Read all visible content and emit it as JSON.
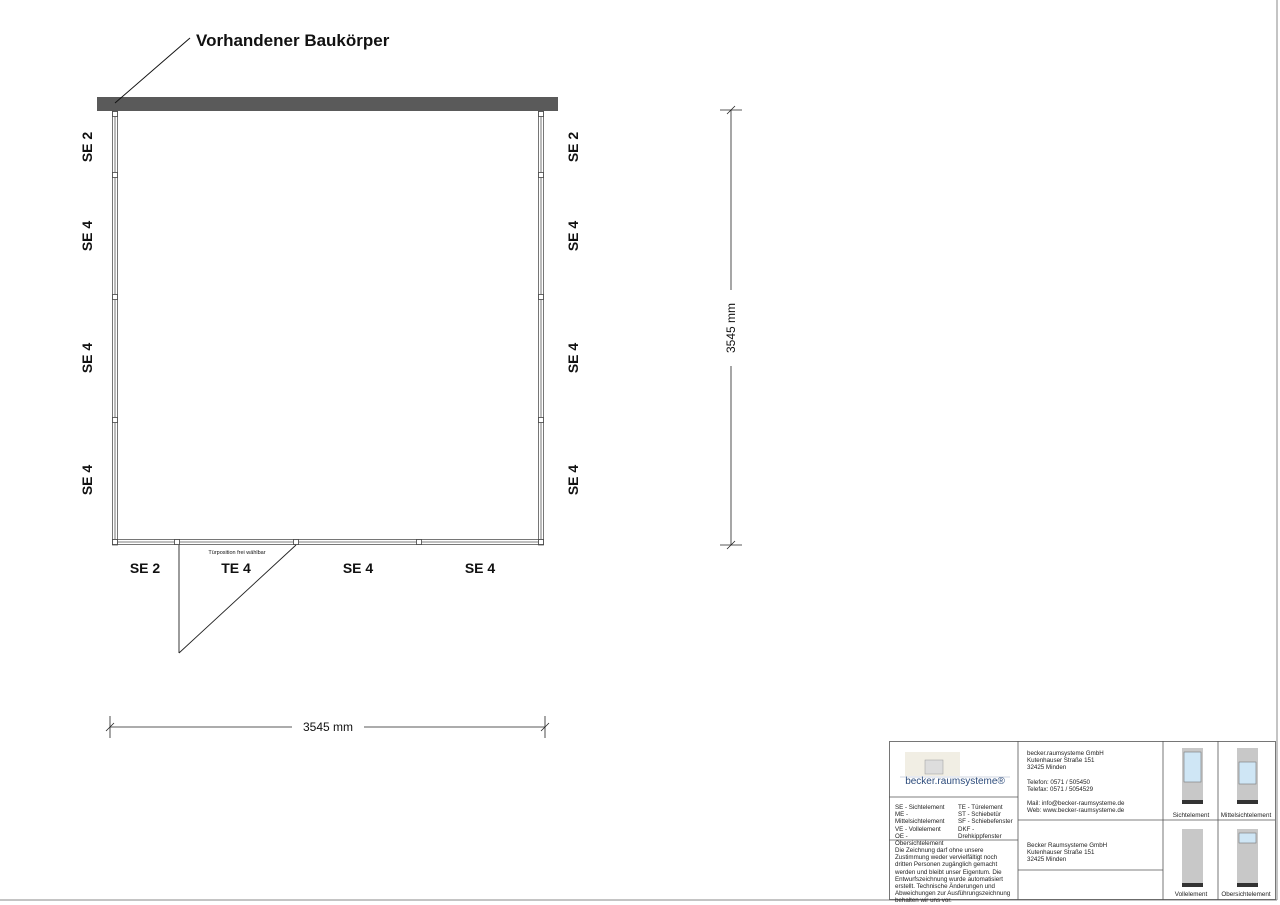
{
  "drawing": {
    "existing_building_label": "Vorhandener Baukörper",
    "door_note": "Türposition frei wählbar",
    "left_labels": [
      "SE 2",
      "SE 4",
      "SE 4",
      "SE 4"
    ],
    "right_labels": [
      "SE 2",
      "SE 4",
      "SE 4",
      "SE 4"
    ],
    "bottom_labels": [
      "SE 2",
      "TE 4",
      "SE 4",
      "SE 4"
    ],
    "height_dimension": "3545 mm",
    "width_dimension": "3545 mm"
  },
  "title_block": {
    "logo_text": "becker.raumsysteme®",
    "legend_left": [
      "SE - Sichtelement",
      "ME - Mittelsichtelement",
      "VE - Vollelement",
      "OE - Obersichtelement"
    ],
    "legend_right": [
      "TE - Türelement",
      "ST - Schiebetür",
      "SF - Schiebefenster",
      "DKF - Drehkippfenster"
    ],
    "disclaimer": "Die Zeichnung darf ohne unsere Zustimmung weder vervielfältigt noch dritten Personen zugänglich gemacht werden und bleibt unser Eigentum. Die Entwurfszeichnung wurde automatisiert erstellt. Technische Änderungen und Abweichungen zur Ausführungszeichnung behalten wir uns vor.",
    "company": [
      "becker.raumsysteme GmbH",
      "Kutenhauser Straße 151",
      "32425 Minden"
    ],
    "phone": "Telefon: 0571 / 505450",
    "fax": "Telefax: 0571 / 5054529",
    "mail": "Mail: info@becker-raumsysteme.de",
    "web": "Web: www.becker-raumsysteme.de",
    "company2": [
      "Becker Raumsysteme GmbH",
      "Kutenhauser Straße 151",
      "32425 Minden"
    ],
    "element_types": [
      "Sichtelement",
      "Mittelsichtelement",
      "Vollelement",
      "Obersichtelement"
    ]
  },
  "colors": {
    "building": "#5a5a5a",
    "glass": "#cfe6f5",
    "panel": "#c8c8c8"
  }
}
